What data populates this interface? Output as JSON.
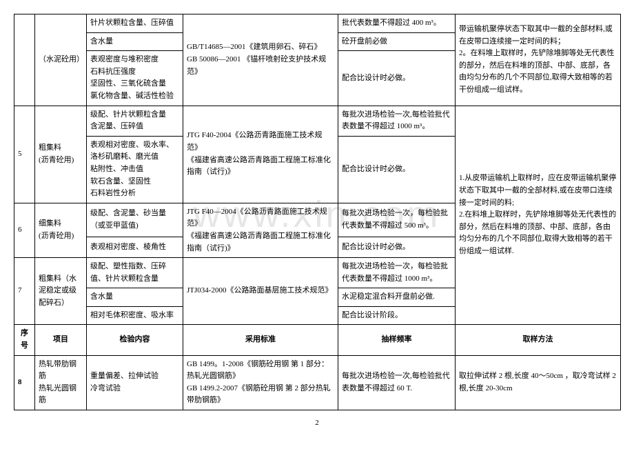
{
  "watermark": "www.xin.com",
  "pageNumber": "2",
  "headers": {
    "seq": "序号",
    "item": "项目",
    "test": "检验内容",
    "std": "采用标准",
    "freq": "抽样频率",
    "samp": "取样方法"
  },
  "rows": {
    "r0_item": "（水泥砼用）",
    "r0_t1": "针片状颗粒含量、压碎值",
    "r0_s1": "GB/T14685—2001《建筑用卵石、碎石》\nGB 50086—2001 《锚杆喷射砼支护技术规范》",
    "r0_f1": "批代表数量不得超过 400 m³。",
    "r0_samp": "带运输机聚停状态下取其中一截的全部材料,或在皮带口连续接一定时间的料；\n2。在料堆上取样时，先铲除堆脚等处无代表性的部分，然后在料堆的顶部、中部、底部，各由均匀分布的几个不同部位,取得大致相等的若干份组成一组试样。",
    "r0_t2": "含水量",
    "r0_f2": "砼开盘前必做",
    "r0_t3": "表观密度与堆积密度\n石料抗压强度\n坚固性、三氧化硫含量\n氯化物含量、碱活性检验",
    "r0_f3": "配合比设计时必做。",
    "r5_seq": "5",
    "r5_item": "粗集料\n(沥青砼用)",
    "r5_t1": "级配、针片状颗粒含量\n含泥量、压碎值",
    "r5_s1": "JTG F40-2004《公路沥青路面施工技术规范》\n《福建省高速公路沥青路面工程施工标准化指南（试行)》",
    "r5_f1": "每批次进场检验一次,每检验批代表数量不得超过 1000 m³。",
    "r5_t2": "表观相对密度、吸水率、洛杉矶磨耗、磨光值\n粘附性、冲击值\n软石含量、坚固性\n石料岩性分析",
    "r5_f2": "配合比设计时必做。",
    "r5_samp": "1.从皮带运输机上取样时，应在皮带运输机聚停状态下取其中一截的全部材料,或在皮带口连续接一定时间的料;\n2.在料堆上取样时，先铲除堆脚等处无代表性的部分，然后在料堆的顶部、中部、底部，各由均匀分布的几个不同部位,取得大致相等的若干份组成一组试样.",
    "r6_seq": "6",
    "r6_item": "细集料\n(沥青砼用)",
    "r6_t1": "级配、含泥量、砂当量\n（或亚甲蓝值)",
    "r6_s1": "JTG F40—2004《公路沥青路面施工技术规范》\n《福建省高速公路沥青路面工程施工标准化指南（试行)》",
    "r6_f1": "每批次进场检验一次，每检验批代表数量不得超过 500 m³。",
    "r6_t2": "表观相对密度、棱角性",
    "r6_f2": "配合比设计时必做。",
    "r7_seq": "7",
    "r7_item": "粗集料（水泥稳定或级配碎石）",
    "r7_t1": "级配、塑性指数、压碎值、针片状颗粒含量",
    "r7_s1": "JTJ034-2000《公路路面基层施工技术规范》",
    "r7_f1": "每批次进场检验一次，每检验批代表数量不得超过 1000 m³。",
    "r7_t2": "含水量",
    "r7_f2": "水泥稳定混合料开盘前必做.",
    "r7_t3": "相对毛体积密度、吸水率",
    "r7_f3": "配合比设计阶段。",
    "r8_seq": "8",
    "r8_item": "热轧带肋钢筋\n热轧光圆钢筋",
    "r8_t1": "重量偏差、拉伸试验\n冷弯试验",
    "r8_s1": "GB 1499。1-2008《钢筋砼用钢 第 1 部分：热轧光圆钢筋》\nGB 1499.2-2007《钢筋砼用钢 第 2 部分热轧带肋钢筋》",
    "r8_f1": "每批次进场检验一次,每检验批代表数量不得超过 60 T.",
    "r8_samp": "取拉伸试样 2 根,长度 40～50cm ，取冷弯试样 2 根,长度 20-30cm"
  }
}
